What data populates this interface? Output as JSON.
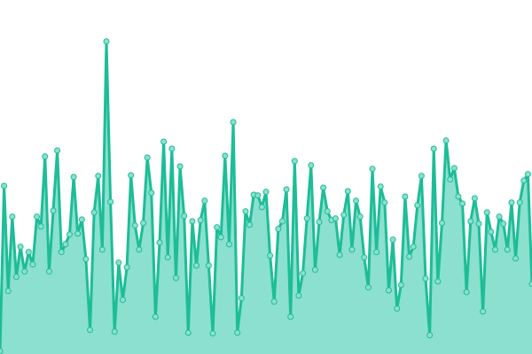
{
  "chart_data": {
    "type": "area",
    "title": "",
    "xlabel": "",
    "ylabel": "",
    "ylim": [
      0,
      100
    ],
    "grid": false,
    "axes_visible": false,
    "markers": true,
    "colors": {
      "line": "#1dbd97",
      "fill": "#8be0cf",
      "marker_fill": "#8be0cf",
      "marker_stroke": "#1dbd97"
    },
    "values": [
      0.8,
      47.5,
      17.8,
      38.8,
      21.8,
      30.3,
      23.3,
      28.8,
      25.3,
      38.8,
      36,
      55.8,
      23.3,
      40.5,
      57.5,
      28.8,
      31,
      33.8,
      50,
      34,
      38,
      26.8,
      6.8,
      40,
      50.3,
      29.5,
      88.3,
      43,
      6.3,
      25.8,
      15.3,
      24.5,
      50.5,
      36.3,
      29.5,
      37,
      55.5,
      45.5,
      10.5,
      31.5,
      60,
      27.3,
      58,
      21.5,
      53,
      39,
      6,
      37.5,
      25,
      37.8,
      43.3,
      25,
      5.8,
      35.8,
      33,
      56,
      31,
      65.5,
      6,
      15.8,
      40.3,
      36.5,
      45,
      44.8,
      41.5,
      45.8,
      27.8,
      14.8,
      35.3,
      37.5,
      46.5,
      10.5,
      54.5,
      16.5,
      22.8,
      38.3,
      53.3,
      23.8,
      37.3,
      47,
      40.3,
      37.8,
      38.3,
      28,
      39.3,
      46,
      29.5,
      43.3,
      38.8,
      27.3,
      18.8,
      52.3,
      28.8,
      47.3,
      42.8,
      18,
      32.3,
      12.8,
      19.5,
      44.5,
      27.5,
      30.3,
      42,
      50.3,
      21.3,
      5.3,
      58,
      20.5,
      37,
      60.3,
      49.3,
      52.5,
      44.5,
      42.5,
      17.5,
      37.5,
      44,
      36.8,
      12,
      40,
      34.5,
      29.5,
      38.8,
      36.8,
      29.5,
      42.8,
      27,
      42.8,
      49,
      50.8,
      19.8
    ]
  }
}
